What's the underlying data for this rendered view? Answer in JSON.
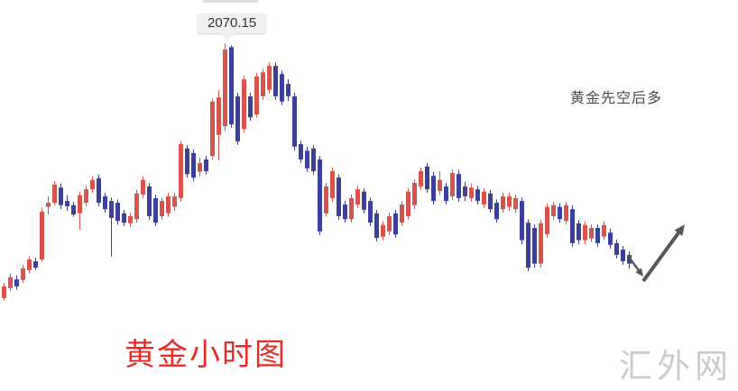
{
  "watermark": {
    "text": "汇外网"
  },
  "colors": {
    "title_red": "#ea2a26",
    "note_gray": "#4d4d4d",
    "watermark_gray": "#cccccc",
    "tooltip_bg": "#f0f0f0",
    "tooltip_text": "#333333"
  },
  "chart_data": {
    "type": "candlestick",
    "title": "黄金小时图",
    "note": "黄金先空后多",
    "peak_label": "2070.15",
    "peak_value": 2070.15,
    "xlabel": "",
    "ylabel": "",
    "ylim": [
      2025.2,
      2071.4
    ],
    "grid": false,
    "axes_visible": false,
    "legend": "none",
    "up_color": "#d6544c",
    "down_color": "#3d3f9d",
    "arrow_color": "#55565a",
    "candles": [
      [
        2026.6,
        2029.2,
        2026.2,
        2028.6
      ],
      [
        2028.3,
        2030.8,
        2027.8,
        2030.2
      ],
      [
        2029.8,
        2030.5,
        2028.1,
        2028.6
      ],
      [
        2029.7,
        2032.3,
        2029.2,
        2031.7
      ],
      [
        2031.4,
        2033.8,
        2030.9,
        2033.2
      ],
      [
        2032.9,
        2033.5,
        2031.4,
        2031.8
      ],
      [
        2033.2,
        2042.0,
        2032.8,
        2041.4
      ],
      [
        2042.2,
        2044.0,
        2040.9,
        2042.9
      ],
      [
        2042.9,
        2046.6,
        2042.5,
        2046.0
      ],
      [
        2045.5,
        2046.2,
        2041.8,
        2042.5
      ],
      [
        2043.2,
        2044.2,
        2041.5,
        2042.3
      ],
      [
        2042.5,
        2043.1,
        2040.5,
        2040.9
      ],
      [
        2041.1,
        2044.8,
        2038.3,
        2044.2
      ],
      [
        2042.9,
        2045.8,
        2042.3,
        2045.2
      ],
      [
        2045.2,
        2047.4,
        2044.6,
        2046.8
      ],
      [
        2047.1,
        2047.7,
        2042.3,
        2042.9
      ],
      [
        2044.0,
        2044.6,
        2041.2,
        2041.8
      ],
      [
        2043.2,
        2043.8,
        2033.7,
        2040.3
      ],
      [
        2042.9,
        2043.5,
        2039.2,
        2039.8
      ],
      [
        2041.1,
        2041.7,
        2038.9,
        2039.5
      ],
      [
        2039.4,
        2041.2,
        2038.8,
        2040.6
      ],
      [
        2040.1,
        2045.1,
        2039.5,
        2044.5
      ],
      [
        2044.3,
        2047.4,
        2043.7,
        2046.8
      ],
      [
        2045.7,
        2046.3,
        2040.0,
        2040.6
      ],
      [
        2043.7,
        2044.3,
        2038.9,
        2039.5
      ],
      [
        2040.6,
        2043.8,
        2040.0,
        2043.2
      ],
      [
        2041.1,
        2044.6,
        2040.5,
        2044.0
      ],
      [
        2042.2,
        2044.6,
        2041.5,
        2044.0
      ],
      [
        2043.7,
        2053.5,
        2043.1,
        2052.9
      ],
      [
        2052.2,
        2052.8,
        2047.2,
        2047.8
      ],
      [
        2051.4,
        2052.0,
        2046.6,
        2047.2
      ],
      [
        2048.2,
        2050.6,
        2047.4,
        2049.7
      ],
      [
        2050.3,
        2050.9,
        2047.7,
        2048.3
      ],
      [
        2050.9,
        2060.8,
        2050.3,
        2060.2
      ],
      [
        2054.5,
        2062.2,
        2050.2,
        2060.9
      ],
      [
        2056.0,
        2070.15,
        2055.2,
        2069.1
      ],
      [
        2069.5,
        2069.8,
        2055.7,
        2056.3
      ],
      [
        2061.1,
        2061.7,
        2052.8,
        2053.4
      ],
      [
        2055.5,
        2064.6,
        2054.9,
        2064.0
      ],
      [
        2061.1,
        2061.7,
        2056.9,
        2057.5
      ],
      [
        2058.0,
        2065.1,
        2057.4,
        2064.5
      ],
      [
        2061.1,
        2065.8,
        2060.5,
        2065.2
      ],
      [
        2062.2,
        2066.9,
        2061.6,
        2066.3
      ],
      [
        2066.3,
        2066.9,
        2060.5,
        2061.1
      ],
      [
        2064.9,
        2065.5,
        2059.6,
        2060.2
      ],
      [
        2063.2,
        2064.0,
        2060.3,
        2061.1
      ],
      [
        2061.1,
        2061.7,
        2051.8,
        2052.5
      ],
      [
        2052.9,
        2053.5,
        2049.7,
        2050.3
      ],
      [
        2051.8,
        2052.5,
        2048.2,
        2048.8
      ],
      [
        2052.2,
        2052.8,
        2047.7,
        2048.3
      ],
      [
        2050.3,
        2050.9,
        2037.4,
        2038.0
      ],
      [
        2041.1,
        2046.3,
        2040.5,
        2045.7
      ],
      [
        2043.7,
        2048.9,
        2043.1,
        2048.3
      ],
      [
        2047.2,
        2047.8,
        2040.0,
        2040.6
      ],
      [
        2042.6,
        2043.2,
        2039.5,
        2040.1
      ],
      [
        2040.1,
        2044.3,
        2039.5,
        2043.7
      ],
      [
        2042.6,
        2045.8,
        2042.0,
        2045.2
      ],
      [
        2044.8,
        2045.4,
        2041.1,
        2041.7
      ],
      [
        2043.2,
        2043.8,
        2038.9,
        2039.5
      ],
      [
        2041.1,
        2041.7,
        2036.3,
        2036.9
      ],
      [
        2037.1,
        2039.7,
        2036.5,
        2039.1
      ],
      [
        2038.0,
        2041.2,
        2037.4,
        2040.6
      ],
      [
        2041.1,
        2041.7,
        2036.9,
        2037.5
      ],
      [
        2039.5,
        2043.2,
        2038.9,
        2042.6
      ],
      [
        2040.6,
        2045.4,
        2040.0,
        2044.8
      ],
      [
        2042.5,
        2046.9,
        2041.8,
        2046.3
      ],
      [
        2045.7,
        2048.9,
        2045.1,
        2048.3
      ],
      [
        2049.1,
        2049.7,
        2044.6,
        2045.2
      ],
      [
        2047.5,
        2048.2,
        2042.6,
        2043.2
      ],
      [
        2044.9,
        2048.3,
        2044.2,
        2046.8
      ],
      [
        2045.7,
        2046.3,
        2042.6,
        2043.2
      ],
      [
        2044.0,
        2048.6,
        2043.4,
        2048.0
      ],
      [
        2047.8,
        2048.5,
        2043.1,
        2043.7
      ],
      [
        2045.7,
        2046.5,
        2043.2,
        2044.0
      ],
      [
        2043.7,
        2046.2,
        2043.1,
        2045.5
      ],
      [
        2045.2,
        2045.8,
        2042.6,
        2043.2
      ],
      [
        2042.6,
        2045.4,
        2042.0,
        2044.8
      ],
      [
        2044.5,
        2045.1,
        2041.2,
        2041.8
      ],
      [
        2042.9,
        2043.5,
        2039.5,
        2040.1
      ],
      [
        2041.8,
        2044.6,
        2041.2,
        2044.0
      ],
      [
        2042.2,
        2044.6,
        2041.5,
        2044.0
      ],
      [
        2041.8,
        2044.3,
        2041.2,
        2043.7
      ],
      [
        2043.2,
        2043.8,
        2035.8,
        2036.5
      ],
      [
        2039.5,
        2040.1,
        2031.2,
        2031.8
      ],
      [
        2038.6,
        2039.2,
        2031.8,
        2032.5
      ],
      [
        2032.5,
        2040.0,
        2031.8,
        2039.4
      ],
      [
        2037.5,
        2042.8,
        2036.9,
        2042.2
      ],
      [
        2040.6,
        2043.1,
        2040.0,
        2042.5
      ],
      [
        2042.2,
        2042.8,
        2039.5,
        2040.1
      ],
      [
        2039.8,
        2043.1,
        2039.2,
        2042.5
      ],
      [
        2041.8,
        2042.5,
        2035.4,
        2036.0
      ],
      [
        2039.4,
        2040.0,
        2035.8,
        2036.5
      ],
      [
        2036.5,
        2039.7,
        2035.8,
        2039.1
      ],
      [
        2036.8,
        2039.2,
        2036.2,
        2038.6
      ],
      [
        2038.6,
        2039.2,
        2035.4,
        2036.0
      ],
      [
        2037.1,
        2039.7,
        2036.5,
        2039.1
      ],
      [
        2037.8,
        2038.5,
        2035.1,
        2035.7
      ],
      [
        2036.0,
        2036.6,
        2033.4,
        2034.0
      ],
      [
        2034.9,
        2035.5,
        2032.3,
        2032.9
      ],
      [
        2034.0,
        2034.6,
        2031.6,
        2032.5
      ]
    ],
    "arrows": [
      {
        "label": "pullback-down",
        "from": [
          696,
          284
        ],
        "to": [
          713,
          307
        ],
        "width": 2.5,
        "head": 9
      },
      {
        "label": "rally-up",
        "from": [
          713,
          312
        ],
        "to": [
          759,
          249
        ],
        "width": 4,
        "head": 12
      }
    ]
  }
}
